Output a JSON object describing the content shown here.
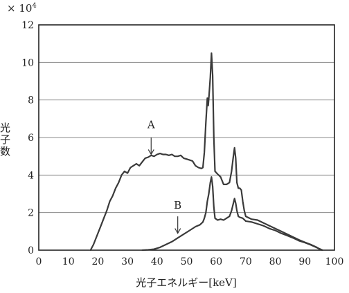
{
  "chart_data": {
    "type": "line",
    "scale_label_prefix": "× 10",
    "scale_label_exponent": "4",
    "ylabel_chars": [
      "光",
      "子",
      "数"
    ],
    "xlabel": "光子エネルギー[keV]",
    "xlim": [
      0,
      100
    ],
    "ylim": [
      0,
      12
    ],
    "x_ticks": [
      "0",
      "10",
      "20",
      "30",
      "40",
      "50",
      "60",
      "70",
      "80",
      "90",
      "100"
    ],
    "y_ticks": [
      "0",
      "2",
      "4",
      "6",
      "8",
      "10",
      "12"
    ],
    "grid": "horizontal",
    "annotations": [
      {
        "text": "A",
        "series": "A",
        "x": 38,
        "text_y": 6.5,
        "arrow_from": 6.0,
        "arrow_to": 5.1
      },
      {
        "text": "B",
        "series": "B",
        "x": 47,
        "text_y": 2.2,
        "arrow_from": 1.8,
        "arrow_to": 0.9
      }
    ],
    "series": [
      {
        "id": "A",
        "points": [
          [
            17.5,
            0
          ],
          [
            18.5,
            0.3
          ],
          [
            20,
            0.9
          ],
          [
            21,
            1.3
          ],
          [
            22,
            1.7
          ],
          [
            23,
            2.1
          ],
          [
            24,
            2.6
          ],
          [
            25,
            2.9
          ],
          [
            26,
            3.3
          ],
          [
            27,
            3.6
          ],
          [
            28,
            4.0
          ],
          [
            29,
            4.2
          ],
          [
            30,
            4.1
          ],
          [
            31,
            4.4
          ],
          [
            32,
            4.5
          ],
          [
            33,
            4.6
          ],
          [
            34,
            4.5
          ],
          [
            35,
            4.7
          ],
          [
            36,
            4.9
          ],
          [
            37,
            4.95
          ],
          [
            38,
            5.05
          ],
          [
            39,
            5.0
          ],
          [
            40,
            5.1
          ],
          [
            41,
            5.15
          ],
          [
            42,
            5.1
          ],
          [
            43,
            5.1
          ],
          [
            44,
            5.05
          ],
          [
            45,
            5.1
          ],
          [
            46,
            5.0
          ],
          [
            47,
            5.0
          ],
          [
            48,
            5.05
          ],
          [
            49,
            4.9
          ],
          [
            50,
            4.85
          ],
          [
            51,
            4.8
          ],
          [
            52,
            4.75
          ],
          [
            53,
            4.5
          ],
          [
            54,
            4.4
          ],
          [
            55,
            4.35
          ],
          [
            55.5,
            4.4
          ],
          [
            56,
            5.2
          ],
          [
            56.5,
            6.8
          ],
          [
            57,
            8.1
          ],
          [
            57.3,
            7.7
          ],
          [
            57.6,
            8.3
          ],
          [
            58,
            9.2
          ],
          [
            58.4,
            10.5
          ],
          [
            58.8,
            9.3
          ],
          [
            59.2,
            6.0
          ],
          [
            59.6,
            4.2
          ],
          [
            60.5,
            4.05
          ],
          [
            61.5,
            3.9
          ],
          [
            62.5,
            3.5
          ],
          [
            63.5,
            3.5
          ],
          [
            64.5,
            3.6
          ],
          [
            65.2,
            4.2
          ],
          [
            65.8,
            5.0
          ],
          [
            66.2,
            5.45
          ],
          [
            66.6,
            4.9
          ],
          [
            67,
            3.6
          ],
          [
            67.5,
            3.3
          ],
          [
            68,
            3.3
          ],
          [
            68.5,
            3.2
          ],
          [
            69,
            2.6
          ],
          [
            69.5,
            2.1
          ],
          [
            70,
            1.8
          ],
          [
            72,
            1.65
          ],
          [
            74,
            1.6
          ],
          [
            76,
            1.45
          ],
          [
            78,
            1.3
          ],
          [
            80,
            1.15
          ],
          [
            82,
            1.0
          ],
          [
            84,
            0.85
          ],
          [
            86,
            0.7
          ],
          [
            88,
            0.55
          ],
          [
            90,
            0.42
          ],
          [
            92,
            0.3
          ],
          [
            94,
            0.15
          ],
          [
            95.5,
            0
          ]
        ]
      },
      {
        "id": "B",
        "points": [
          [
            35,
            0
          ],
          [
            37,
            0.02
          ],
          [
            39,
            0.05
          ],
          [
            41,
            0.15
          ],
          [
            43,
            0.3
          ],
          [
            45,
            0.45
          ],
          [
            47,
            0.65
          ],
          [
            49,
            0.85
          ],
          [
            51,
            1.05
          ],
          [
            53,
            1.25
          ],
          [
            54.5,
            1.35
          ],
          [
            55.5,
            1.5
          ],
          [
            56,
            1.7
          ],
          [
            56.5,
            2.0
          ],
          [
            57,
            2.6
          ],
          [
            57.5,
            3.0
          ],
          [
            58,
            3.6
          ],
          [
            58.4,
            3.9
          ],
          [
            58.8,
            3.4
          ],
          [
            59.2,
            2.3
          ],
          [
            59.6,
            1.7
          ],
          [
            60.5,
            1.6
          ],
          [
            61.5,
            1.65
          ],
          [
            62.5,
            1.6
          ],
          [
            63.5,
            1.7
          ],
          [
            64.5,
            1.8
          ],
          [
            65.2,
            2.1
          ],
          [
            65.8,
            2.5
          ],
          [
            66.2,
            2.75
          ],
          [
            66.6,
            2.5
          ],
          [
            67,
            2.1
          ],
          [
            67.5,
            1.8
          ],
          [
            68,
            1.75
          ],
          [
            69,
            1.7
          ],
          [
            70,
            1.55
          ],
          [
            72,
            1.5
          ],
          [
            74,
            1.4
          ],
          [
            76,
            1.3
          ],
          [
            78,
            1.15
          ],
          [
            80,
            1.05
          ],
          [
            82,
            0.9
          ],
          [
            84,
            0.78
          ],
          [
            86,
            0.65
          ],
          [
            88,
            0.5
          ],
          [
            90,
            0.4
          ],
          [
            92,
            0.28
          ],
          [
            94,
            0.14
          ],
          [
            96,
            0
          ]
        ]
      }
    ]
  }
}
